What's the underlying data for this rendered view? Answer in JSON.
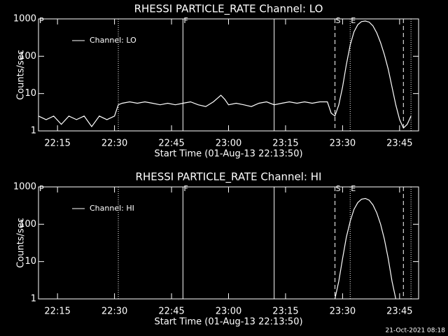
{
  "chart_data": [
    {
      "type": "line",
      "title": "RHESSI PARTICLE_RATE Channel: LO",
      "xlabel": "Start Time (01-Aug-13 22:13:50)",
      "ylabel": "Counts/sec",
      "xlim": [
        "22:10",
        "23:50"
      ],
      "xticks": [
        "22:15",
        "22:30",
        "22:45",
        "23:00",
        "23:15",
        "23:30",
        "23:45"
      ],
      "ylim": [
        1,
        1000
      ],
      "yticks": [
        1,
        10,
        100,
        1000
      ],
      "log_y": true,
      "legend": "upper left",
      "markers": [
        {
          "x": "22:10",
          "style": "solid",
          "label": "P"
        },
        {
          "x": "22:31",
          "style": "dotted"
        },
        {
          "x": "22:48",
          "style": "solid",
          "label": "F"
        },
        {
          "x": "23:12",
          "style": "solid"
        },
        {
          "x": "23:28",
          "style": "dashed",
          "label": "S"
        },
        {
          "x": "23:32",
          "style": "dotted",
          "label": "E"
        },
        {
          "x": "23:46",
          "style": "dashed"
        },
        {
          "x": "23:48",
          "style": "dotted"
        }
      ],
      "x": [
        "22:10",
        "22:12",
        "22:14",
        "22:16",
        "22:18",
        "22:20",
        "22:22",
        "22:24",
        "22:26",
        "22:28",
        "22:30",
        "22:31",
        "22:32",
        "22:34",
        "22:36",
        "22:38",
        "22:40",
        "22:42",
        "22:44",
        "22:46",
        "22:48",
        "22:50",
        "22:52",
        "22:54",
        "22:56",
        "22:58",
        "22:59",
        "23:00",
        "23:02",
        "23:04",
        "23:06",
        "23:08",
        "23:10",
        "23:12",
        "23:14",
        "23:16",
        "23:18",
        "23:20",
        "23:22",
        "23:24",
        "23:26",
        "23:27",
        "23:28",
        "23:29",
        "23:30",
        "23:31",
        "23:32",
        "23:33",
        "23:34",
        "23:35",
        "23:36",
        "23:37",
        "23:38",
        "23:39",
        "23:40",
        "23:41",
        "23:42",
        "23:43",
        "23:44",
        "23:45",
        "23:46",
        "23:47",
        "23:48"
      ],
      "series": [
        {
          "name": "Channel: LO",
          "color": "#ffffff",
          "values": [
            2.5,
            2,
            2.5,
            1.5,
            2.5,
            2,
            2.5,
            1.3,
            2.5,
            2,
            2.5,
            5,
            5.5,
            6,
            5.5,
            6,
            5.5,
            5,
            5.5,
            5,
            5.5,
            6,
            5,
            4.5,
            6,
            9,
            7,
            5,
            5.5,
            5,
            4.5,
            5.5,
            6,
            5,
            5.5,
            6,
            5.5,
            6,
            5.5,
            6,
            6,
            3,
            2.5,
            5,
            15,
            60,
            200,
            450,
            700,
            850,
            880,
            820,
            650,
            420,
            230,
            110,
            45,
            15,
            5,
            2,
            1.2,
            1.5,
            2.5
          ]
        }
      ]
    },
    {
      "type": "line",
      "title": "RHESSI PARTICLE_RATE Channel: HI",
      "xlabel": "Start Time (01-Aug-13 22:13:50)",
      "ylabel": "Counts/sec",
      "xlim": [
        "22:10",
        "23:50"
      ],
      "xticks": [
        "22:15",
        "22:30",
        "22:45",
        "23:00",
        "23:15",
        "23:30",
        "23:45"
      ],
      "ylim": [
        1,
        1000
      ],
      "yticks": [
        1,
        10,
        100,
        1000
      ],
      "log_y": true,
      "legend": "upper left",
      "markers": [
        {
          "x": "22:10",
          "style": "solid",
          "label": "P"
        },
        {
          "x": "22:31",
          "style": "dotted"
        },
        {
          "x": "22:48",
          "style": "solid",
          "label": "F"
        },
        {
          "x": "23:12",
          "style": "solid"
        },
        {
          "x": "23:28",
          "style": "dashed",
          "label": "S"
        },
        {
          "x": "23:32",
          "style": "dotted",
          "label": "E"
        },
        {
          "x": "23:46",
          "style": "dashed"
        },
        {
          "x": "23:48",
          "style": "dotted"
        }
      ],
      "x": [
        "23:28",
        "23:29",
        "23:30",
        "23:31",
        "23:32",
        "23:33",
        "23:34",
        "23:35",
        "23:36",
        "23:37",
        "23:38",
        "23:39",
        "23:40",
        "23:41",
        "23:42",
        "23:43",
        "23:44"
      ],
      "series": [
        {
          "name": "Channel: HI",
          "color": "#ffffff",
          "values": [
            1,
            3,
            12,
            45,
            120,
            250,
            380,
            470,
            490,
            440,
            330,
            200,
            100,
            40,
            12,
            3,
            1
          ]
        }
      ]
    }
  ],
  "footer": "21-Oct-2021 08:18"
}
